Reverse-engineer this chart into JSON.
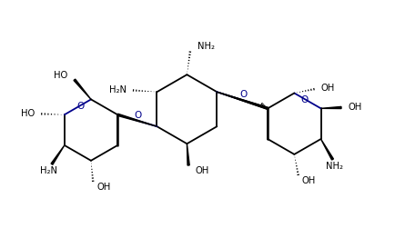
{
  "background": "#ffffff",
  "line_color": "#000000",
  "bond_color_O": "#00008b",
  "text_color": "#000000",
  "figsize": [
    4.35,
    2.62
  ],
  "dpi": 100,
  "xlim": [
    0,
    10
  ],
  "ylim": [
    0,
    6
  ]
}
